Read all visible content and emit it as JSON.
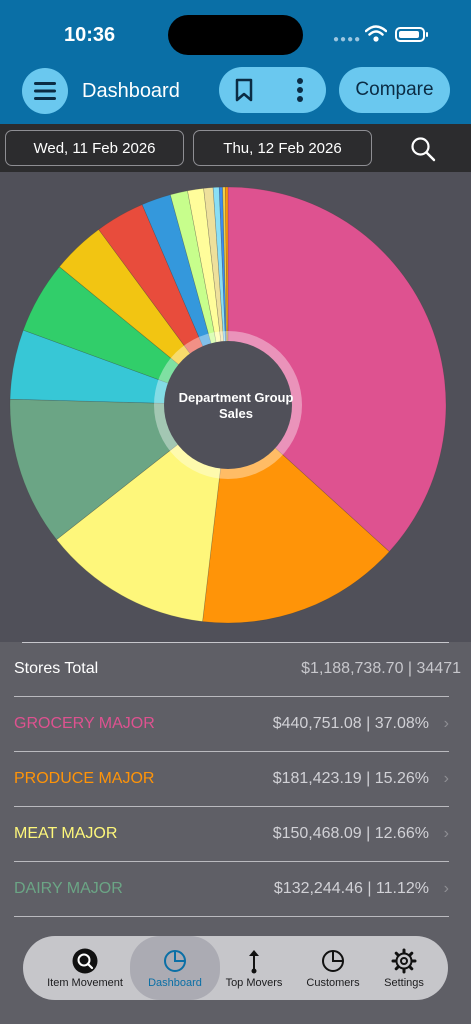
{
  "status_bar": {
    "time": "10:36"
  },
  "header": {
    "title": "Dashboard",
    "compare_label": "Compare"
  },
  "dates": {
    "start": "Wed, 11 Feb 2026",
    "end": "Thu, 12 Feb 2026"
  },
  "chart_data": {
    "type": "pie",
    "title": "Department Group Sales",
    "donut": true,
    "slices": [
      {
        "name": "GROCERY MAJOR",
        "value": 37.08,
        "color": "#de5290"
      },
      {
        "name": "PRODUCE MAJOR",
        "value": 15.26,
        "color": "#ff9408"
      },
      {
        "name": "MEAT MAJOR",
        "value": 12.66,
        "color": "#fef77b"
      },
      {
        "name": "DAIRY MAJOR",
        "value": 11.12,
        "color": "#6ba585"
      },
      {
        "value": 5.2,
        "color": "#37c7d6"
      },
      {
        "value": 5.4,
        "color": "#31ce6a"
      },
      {
        "value": 4.0,
        "color": "#f2c512"
      },
      {
        "value": 3.7,
        "color": "#e84c3c"
      },
      {
        "value": 2.2,
        "color": "#3498dc"
      },
      {
        "value": 1.3,
        "color": "#c7fe8c"
      },
      {
        "value": 1.2,
        "color": "#fffd9b"
      },
      {
        "value": 0.7,
        "color": "#eee09b"
      },
      {
        "value": 0.45,
        "color": "#8adff5"
      },
      {
        "value": 0.25,
        "color": "#3c8cf0"
      },
      {
        "value": 0.2,
        "color": "#f0d04a"
      },
      {
        "value": 0.2,
        "color": "#ff9408"
      }
    ]
  },
  "list": {
    "total": {
      "label": "Stores Total",
      "value": "$1,188,738.70 | 34471"
    },
    "rows": [
      {
        "label": "GROCERY MAJOR",
        "value": "$440,751.08 | 37.08%",
        "color": "#de5290"
      },
      {
        "label": "PRODUCE MAJOR",
        "value": "$181,423.19 | 15.26%",
        "color": "#ff9408"
      },
      {
        "label": "MEAT MAJOR",
        "value": "$150,468.09 | 12.66%",
        "color": "#fef77b"
      },
      {
        "label": "DAIRY MAJOR",
        "value": "$132,244.46 | 11.12%",
        "color": "#6ba585"
      }
    ]
  },
  "tabs": [
    {
      "label": "Item Movement",
      "icon": "magnifier-icon",
      "active": false
    },
    {
      "label": "Dashboard",
      "icon": "pie-chart-icon",
      "active": true
    },
    {
      "label": "Top Movers",
      "icon": "arrow-updown-icon",
      "active": false
    },
    {
      "label": "Customers",
      "icon": "pie-outline-icon",
      "active": false
    },
    {
      "label": "Settings",
      "icon": "gear-icon",
      "active": false
    }
  ],
  "colors": {
    "header": "#0a6fa6",
    "accent": "#6ac8ef",
    "active_tab_text": "#0a6fa6"
  }
}
